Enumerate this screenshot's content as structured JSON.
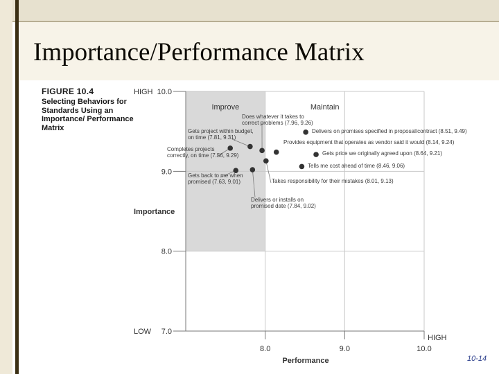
{
  "slide": {
    "title": "Importance/Performance Matrix",
    "page_number": "10-14"
  },
  "figure": {
    "number": "FIGURE 10.4",
    "title": "Selecting Behaviors for Standards Using an Importance/ Performance Matrix"
  },
  "colors": {
    "improve_region": "#d9d9d9",
    "grid": "#c8c8c8",
    "axis": "#777777",
    "point": "#333333",
    "text": "#333333"
  },
  "chart_data": {
    "type": "scatter",
    "title": "",
    "xlabel": "Performance",
    "ylabel": "Importance",
    "xlim": [
      7.0,
      10.0
    ],
    "ylim": [
      7.0,
      10.0
    ],
    "x_ticks": [
      "8.0",
      "9.0",
      "10.0"
    ],
    "y_ticks": [
      "10.0",
      "9.0",
      "8.0",
      "7.0"
    ],
    "y_high_label": "HIGH",
    "y_low_label": "LOW",
    "x_high_label": "HIGH",
    "grid": true,
    "regions": [
      {
        "label": "Improve",
        "x_range": [
          7.0,
          8.0
        ],
        "y_range": [
          8.0,
          10.0
        ],
        "shaded": true
      },
      {
        "label": "Maintain",
        "x_range": [
          8.0,
          10.0
        ],
        "y_range": [
          8.0,
          10.0
        ],
        "shaded": false
      }
    ],
    "points": [
      {
        "label_lines": [
          "Does whatever it takes to",
          "correct problems (7.96, 9.26)"
        ],
        "x": 7.96,
        "y": 9.26
      },
      {
        "label_lines": [
          "Delivers on promises specified in proposal/contract (8.51, 9.49)"
        ],
        "x": 8.51,
        "y": 9.49
      },
      {
        "label_lines": [
          "Gets project within budget,",
          "on time (7.81, 9.31)"
        ],
        "x": 7.81,
        "y": 9.31
      },
      {
        "label_lines": [
          "Provides equipment that operates as vendor said it would (8.14, 9.24)"
        ],
        "x": 8.14,
        "y": 9.24
      },
      {
        "label_lines": [
          "Completes projects",
          "correctly, on time (7.56, 9.29)"
        ],
        "x": 7.56,
        "y": 9.29
      },
      {
        "label_lines": [
          "Gets price we originally agreed upon (8.64, 9.21)"
        ],
        "x": 8.64,
        "y": 9.21
      },
      {
        "label_lines": [
          "Tells me cost ahead of time (8.46, 9.06)"
        ],
        "x": 8.46,
        "y": 9.06
      },
      {
        "label_lines": [
          "Gets back to me when",
          "promised (7.63, 9.01)"
        ],
        "x": 7.63,
        "y": 9.01
      },
      {
        "label_lines": [
          "Takes responsibility for their mistakes (8.01, 9.13)"
        ],
        "x": 8.01,
        "y": 9.13
      },
      {
        "label_lines": [
          "Delivers or installs on",
          "promised date (7.84, 9.02)"
        ],
        "x": 7.84,
        "y": 9.02
      }
    ]
  }
}
